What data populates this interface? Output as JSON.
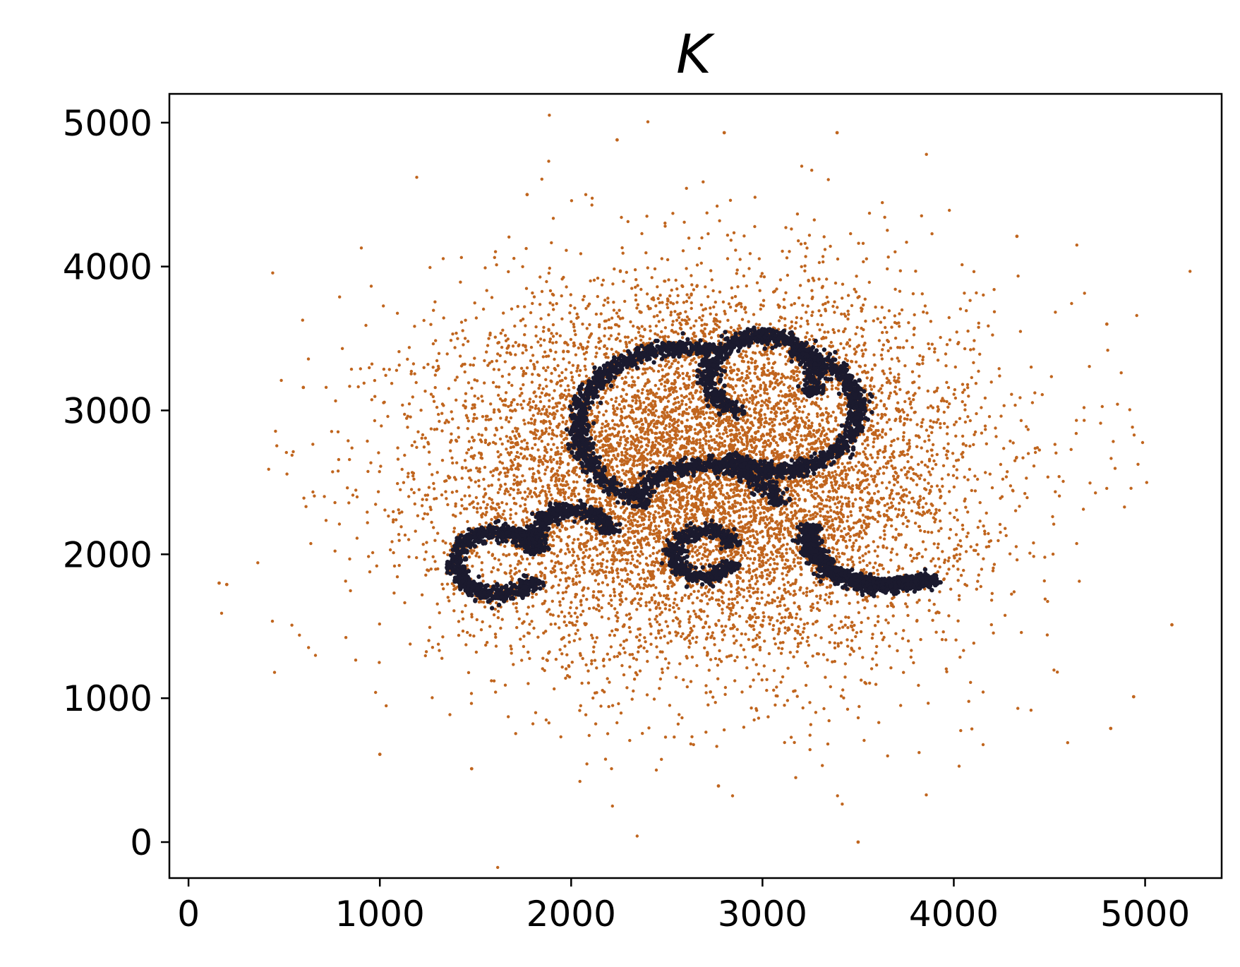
{
  "chart_data": {
    "type": "scatter",
    "title": "K",
    "xlabel": "",
    "ylabel": "",
    "xlim": [
      -100,
      5400
    ],
    "ylim": [
      -250,
      5200
    ],
    "xticks": [
      0,
      1000,
      2000,
      3000,
      4000,
      5000
    ],
    "yticks": [
      0,
      1000,
      2000,
      3000,
      4000,
      5000
    ],
    "xtick_labels": [
      "0",
      "1000",
      "2000",
      "3000",
      "4000",
      "5000"
    ],
    "ytick_labels": [
      "0",
      "1000",
      "2000",
      "3000",
      "4000",
      "5000"
    ],
    "grid": false,
    "series": [
      {
        "color": "#c0651e",
        "role": "background-scatter",
        "center": [
          2700,
          2550
        ],
        "spread": [
          700,
          650
        ],
        "count": 9000,
        "outliers": [
          [
            160,
            1800
          ],
          [
            200,
            1790
          ],
          [
            3500,
            0
          ],
          [
            1000,
            610
          ],
          [
            2240,
            4880
          ],
          [
            2800,
            4930
          ],
          [
            3390,
            4930
          ],
          [
            5140,
            1510
          ],
          [
            4940,
            1010
          ],
          [
            4820,
            790
          ],
          [
            1480,
            510
          ],
          [
            1770,
            4500
          ],
          [
            4330,
            4210
          ],
          [
            4800,
            3600
          ],
          [
            600,
            3160
          ],
          [
            2770,
            390
          ]
        ]
      },
      {
        "color": "#1b1a2e",
        "role": "arc-points",
        "arcs": [
          {
            "cx": 1620,
            "cy": 1940,
            "r": 220,
            "start_deg": 20,
            "end_deg": 330,
            "count": 700
          },
          {
            "cx": 2010,
            "cy": 2110,
            "r": 200,
            "start_deg": 10,
            "end_deg": 210,
            "count": 450
          },
          {
            "cx": 2700,
            "cy": 2000,
            "r": 160,
            "start_deg": 20,
            "end_deg": 340,
            "count": 450
          },
          {
            "cx": 2600,
            "cy": 2880,
            "r": 560,
            "start_deg": 75,
            "end_deg": 250,
            "count": 800
          },
          {
            "cx": 2700,
            "cy": 2200,
            "r": 420,
            "start_deg": 20,
            "end_deg": 150,
            "count": 450
          },
          {
            "cx": 3000,
            "cy": 3240,
            "r": 280,
            "start_deg": 330,
            "end_deg": 250,
            "count": 700
          },
          {
            "cx": 3080,
            "cy": 3000,
            "r": 420,
            "start_deg": 230,
            "end_deg": 80,
            "count": 800
          },
          {
            "cx": 3600,
            "cy": 2150,
            "r": 360,
            "start_deg": 170,
            "end_deg": 270,
            "count": 600
          },
          {
            "cx": 3650,
            "cy": 1770,
            "r": 1,
            "start_deg": 0,
            "end_deg": 0,
            "count": 0
          }
        ],
        "tail_segments": [
          [
            3600,
            1780,
            3900,
            1820,
            500
          ]
        ]
      }
    ]
  }
}
